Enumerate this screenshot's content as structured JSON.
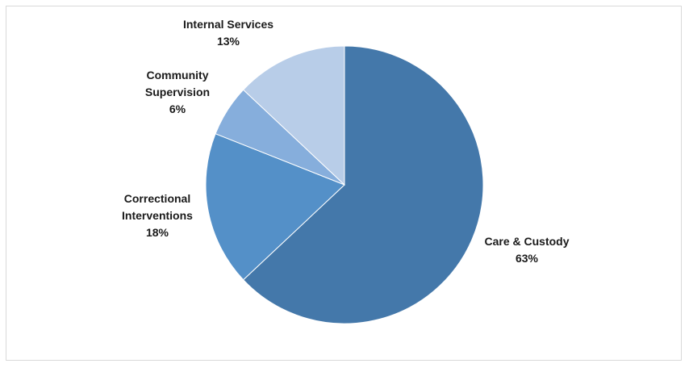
{
  "chart_data": {
    "type": "pie",
    "title": "",
    "start_angle_deg": 0,
    "direction": "clockwise",
    "legend": "none",
    "slices": [
      {
        "label": "Care & Custody",
        "value": 63,
        "display": "63%",
        "color": "#4478aa"
      },
      {
        "label": "Correctional Interventions",
        "label_lines": [
          "Correctional",
          "Interventions"
        ],
        "value": 18,
        "display": "18%",
        "color": "#5490c8"
      },
      {
        "label": "Community Supervision",
        "label_lines": [
          "Community",
          "Supervision"
        ],
        "value": 6,
        "display": "6%",
        "color": "#86aedc"
      },
      {
        "label": "Internal Services",
        "value": 13,
        "display": "13%",
        "color": "#b8cde8"
      }
    ]
  }
}
